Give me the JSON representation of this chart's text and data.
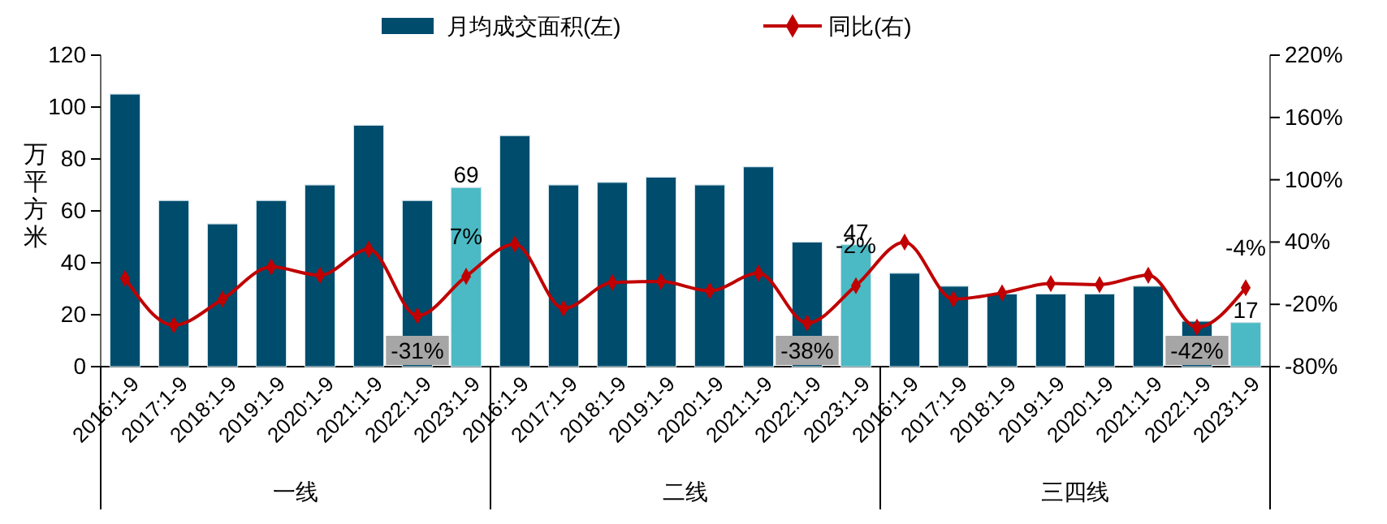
{
  "chart_data": {
    "type": "bar",
    "ylabel": "万平方米",
    "categories": [
      "2016:1-9",
      "2017:1-9",
      "2018:1-9",
      "2019:1-9",
      "2020:1-9",
      "2021:1-9",
      "2022:1-9",
      "2023:1-9",
      "2016:1-9",
      "2017:1-9",
      "2018:1-9",
      "2019:1-9",
      "2020:1-9",
      "2021:1-9",
      "2022:1-9",
      "2023:1-9",
      "2016:1-9",
      "2017:1-9",
      "2018:1-9",
      "2019:1-9",
      "2020:1-9",
      "2021:1-9",
      "2022:1-9",
      "2023:1-9"
    ],
    "series": [
      {
        "name": "月均成交面积(左)",
        "color": "#004c6d",
        "colors": [
          "#004c6d",
          "#004c6d",
          "#004c6d",
          "#004c6d",
          "#004c6d",
          "#004c6d",
          "#004c6d",
          "#4bbac4",
          "#004c6d",
          "#004c6d",
          "#004c6d",
          "#004c6d",
          "#004c6d",
          "#004c6d",
          "#004c6d",
          "#4bbac4",
          "#004c6d",
          "#004c6d",
          "#004c6d",
          "#004c6d",
          "#004c6d",
          "#004c6d",
          "#004c6d",
          "#4bbac4"
        ],
        "values": [
          105,
          64,
          55,
          64,
          70,
          93,
          64,
          69,
          89,
          70,
          71,
          73,
          70,
          77,
          48,
          47,
          36,
          31,
          28,
          28,
          28,
          31,
          17.5,
          17
        ],
        "value_labels": [
          null,
          null,
          null,
          null,
          null,
          null,
          null,
          "69",
          null,
          null,
          null,
          null,
          null,
          null,
          null,
          "47",
          null,
          null,
          null,
          null,
          null,
          null,
          null,
          "17"
        ]
      },
      {
        "name": "同比(右)",
        "type": "line",
        "axis": "y2",
        "color": "#c00000",
        "marker": "diamond",
        "values": [
          5,
          -40,
          -15,
          16,
          8,
          33,
          -31,
          7,
          38,
          -24,
          1,
          2,
          -7,
          10,
          -38,
          -2,
          40,
          -15,
          -9,
          0,
          -1,
          8,
          -42,
          -4
        ],
        "value_labels": [
          null,
          null,
          null,
          null,
          null,
          null,
          "-31%",
          "7%",
          null,
          null,
          null,
          null,
          null,
          null,
          "-38%",
          "-2%",
          null,
          null,
          null,
          null,
          null,
          null,
          "-42%",
          "-4%"
        ]
      }
    ],
    "ylim": [
      0,
      120
    ],
    "yticks": [
      0,
      20,
      40,
      60,
      80,
      100,
      120
    ],
    "y2lim": [
      -80,
      220
    ],
    "y2ticks": [
      {
        "value": -80,
        "label": "-80%"
      },
      {
        "value": -20,
        "label": "-20%"
      },
      {
        "value": 40,
        "label": "40%"
      },
      {
        "value": 100,
        "label": "100%"
      },
      {
        "value": 160,
        "label": "160%"
      },
      {
        "value": 220,
        "label": "220%"
      }
    ],
    "annotations": [
      "一线",
      "二线",
      "三四线"
    ],
    "legend": "top",
    "grid": false
  }
}
